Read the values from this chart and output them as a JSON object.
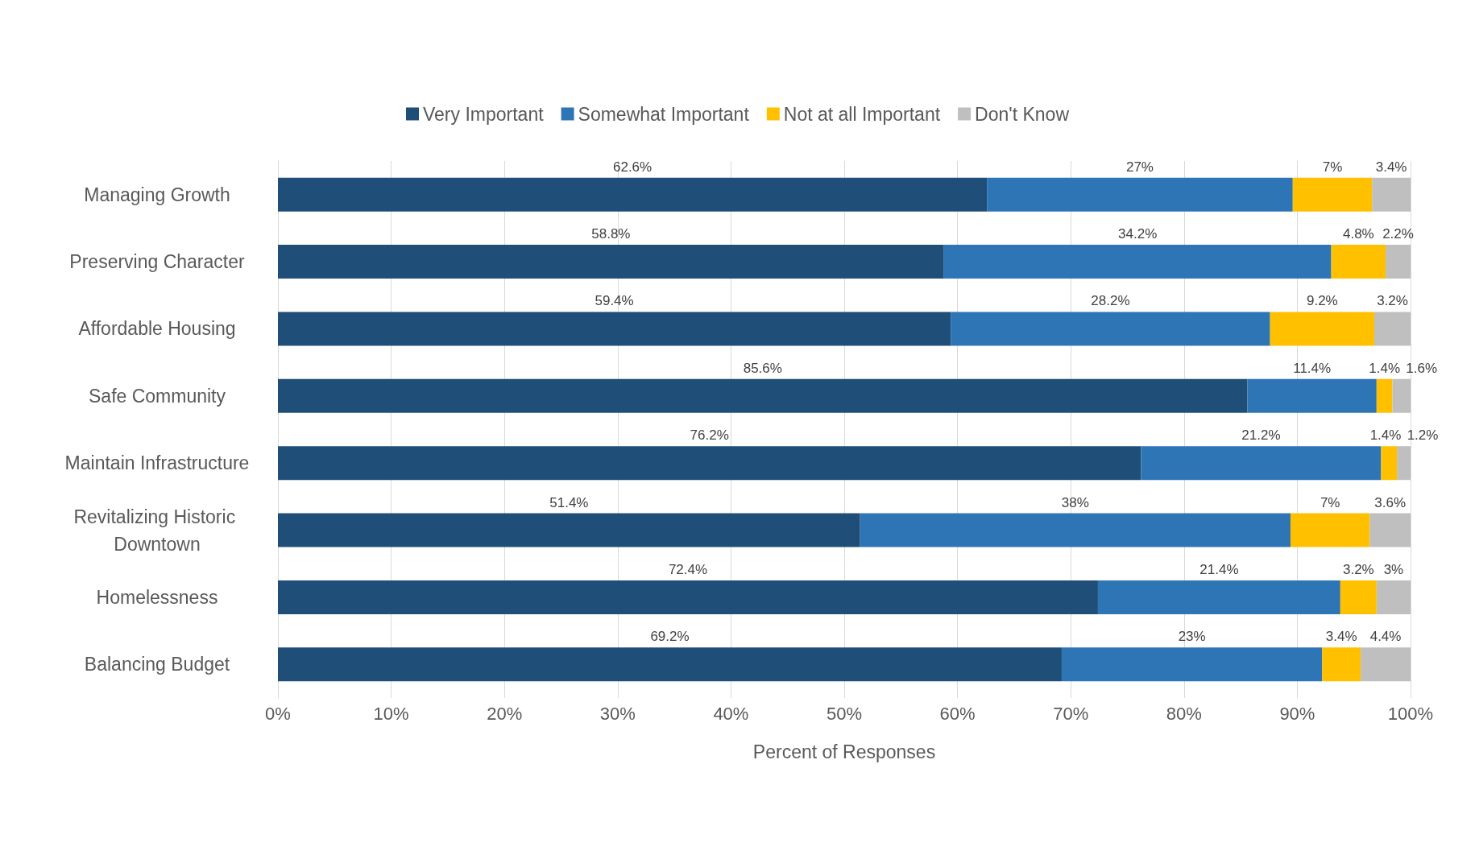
{
  "chart_data": {
    "type": "bar",
    "orientation": "horizontal",
    "stacked": true,
    "xlabel": "Percent of Responses",
    "categories": [
      "Managing Growth",
      "Preserving Character",
      "Affordable Housing",
      "Safe Community",
      "Maintain Infrastructure",
      "Revitalizing Historic Downtown",
      "Homelessness",
      "Balancing Budget"
    ],
    "series": [
      {
        "name": "Very Important",
        "color": "#1f4e79",
        "values": [
          62.6,
          58.8,
          59.4,
          85.6,
          76.2,
          51.4,
          72.4,
          69.2
        ],
        "value_labels": [
          "62.6%",
          "58.8%",
          "59.4%",
          "85.6%",
          "76.2%",
          "51.4%",
          "72.4%",
          "69.2%"
        ]
      },
      {
        "name": "Somewhat Important",
        "color": "#2e75b6",
        "values": [
          27,
          34.2,
          28.2,
          11.4,
          21.2,
          38,
          21.4,
          23
        ],
        "value_labels": [
          "27%",
          "34.2%",
          "28.2%",
          "11.4%",
          "21.2%",
          "38%",
          "21.4%",
          "23%"
        ]
      },
      {
        "name": "Not at all Important",
        "color": "#ffc000",
        "values": [
          7,
          4.8,
          9.2,
          1.4,
          1.4,
          7,
          3.2,
          3.4
        ],
        "value_labels": [
          "7%",
          "4.8%",
          "9.2%",
          "1.4%",
          "1.4%",
          "7%",
          "3.2%",
          "3.4%"
        ]
      },
      {
        "name": "Don't Know",
        "color": "#bfbfbf",
        "values": [
          3.4,
          2.2,
          3.2,
          1.6,
          1.2,
          3.6,
          3,
          4.4
        ],
        "value_labels": [
          "3.4%",
          "2.2%",
          "3.2%",
          "1.6%",
          "1.2%",
          "3.6%",
          "3%",
          "4.4%"
        ]
      }
    ],
    "xlim": [
      0,
      100
    ],
    "xticks": [
      {
        "value": 0,
        "label": "0%"
      },
      {
        "value": 10,
        "label": "10%"
      },
      {
        "value": 20,
        "label": "20%"
      },
      {
        "value": 30,
        "label": "30%"
      },
      {
        "value": 40,
        "label": "40%"
      },
      {
        "value": 50,
        "label": "50%"
      },
      {
        "value": 60,
        "label": "60%"
      },
      {
        "value": 70,
        "label": "70%"
      },
      {
        "value": 80,
        "label": "80%"
      },
      {
        "value": 90,
        "label": "90%"
      },
      {
        "value": 100,
        "label": "100%"
      }
    ],
    "grid": "x",
    "legend": "top"
  }
}
